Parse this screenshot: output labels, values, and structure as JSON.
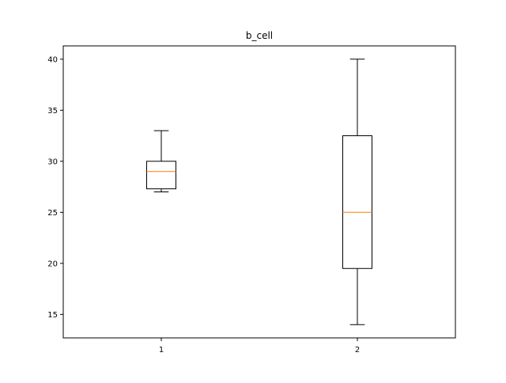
{
  "chart_data": {
    "type": "boxplot",
    "title": "b_cell",
    "xlabel": "",
    "ylabel": "",
    "categories": [
      "1",
      "2"
    ],
    "boxes": [
      {
        "label": "1",
        "whisker_low": 27,
        "q1": 27.3,
        "median": 29,
        "q3": 30,
        "whisker_high": 33
      },
      {
        "label": "2",
        "whisker_low": 14,
        "q1": 19.5,
        "median": 25,
        "q3": 32.5,
        "whisker_high": 40
      }
    ],
    "ylim": [
      12.7,
      41.3
    ],
    "yticks": [
      15,
      20,
      25,
      30,
      35,
      40
    ],
    "xlim": [
      0.5,
      2.5
    ],
    "grid": false,
    "colors": {
      "box": "#000000",
      "median": "#ff7f0e",
      "background": "#ffffff"
    }
  }
}
